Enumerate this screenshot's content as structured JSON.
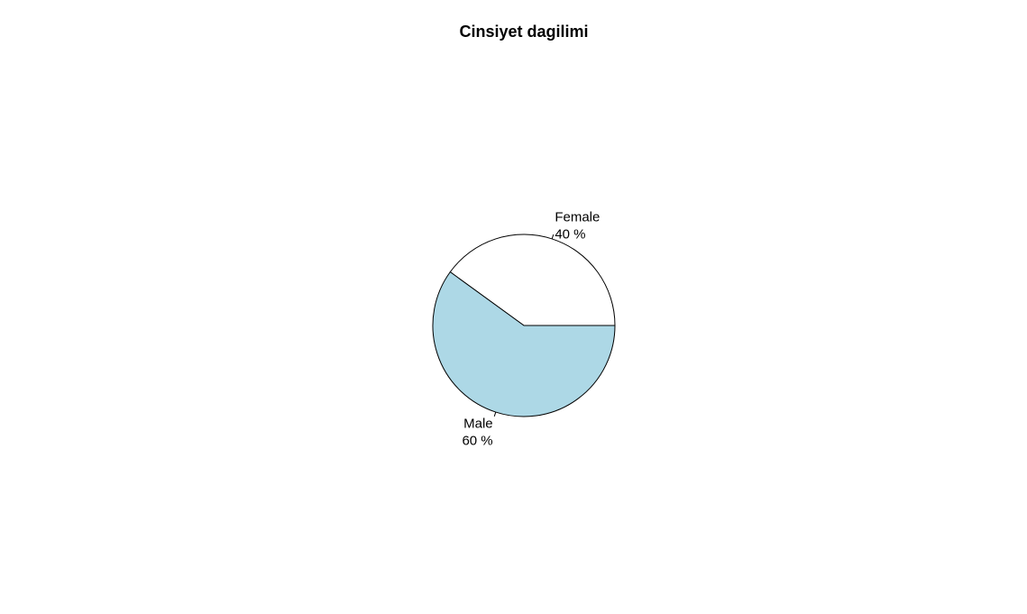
{
  "chart_data": {
    "type": "pie",
    "title": "Cinsiyet dagilimi",
    "clockwise": false,
    "start_angle_deg": 0,
    "slice_border_color": "#000000",
    "slices": [
      {
        "label": "Female",
        "percent_label": "40 %",
        "value": 40,
        "color": "#ffffff"
      },
      {
        "label": "Male",
        "percent_label": "60 %",
        "value": 60,
        "color": "#add8e6"
      }
    ]
  }
}
